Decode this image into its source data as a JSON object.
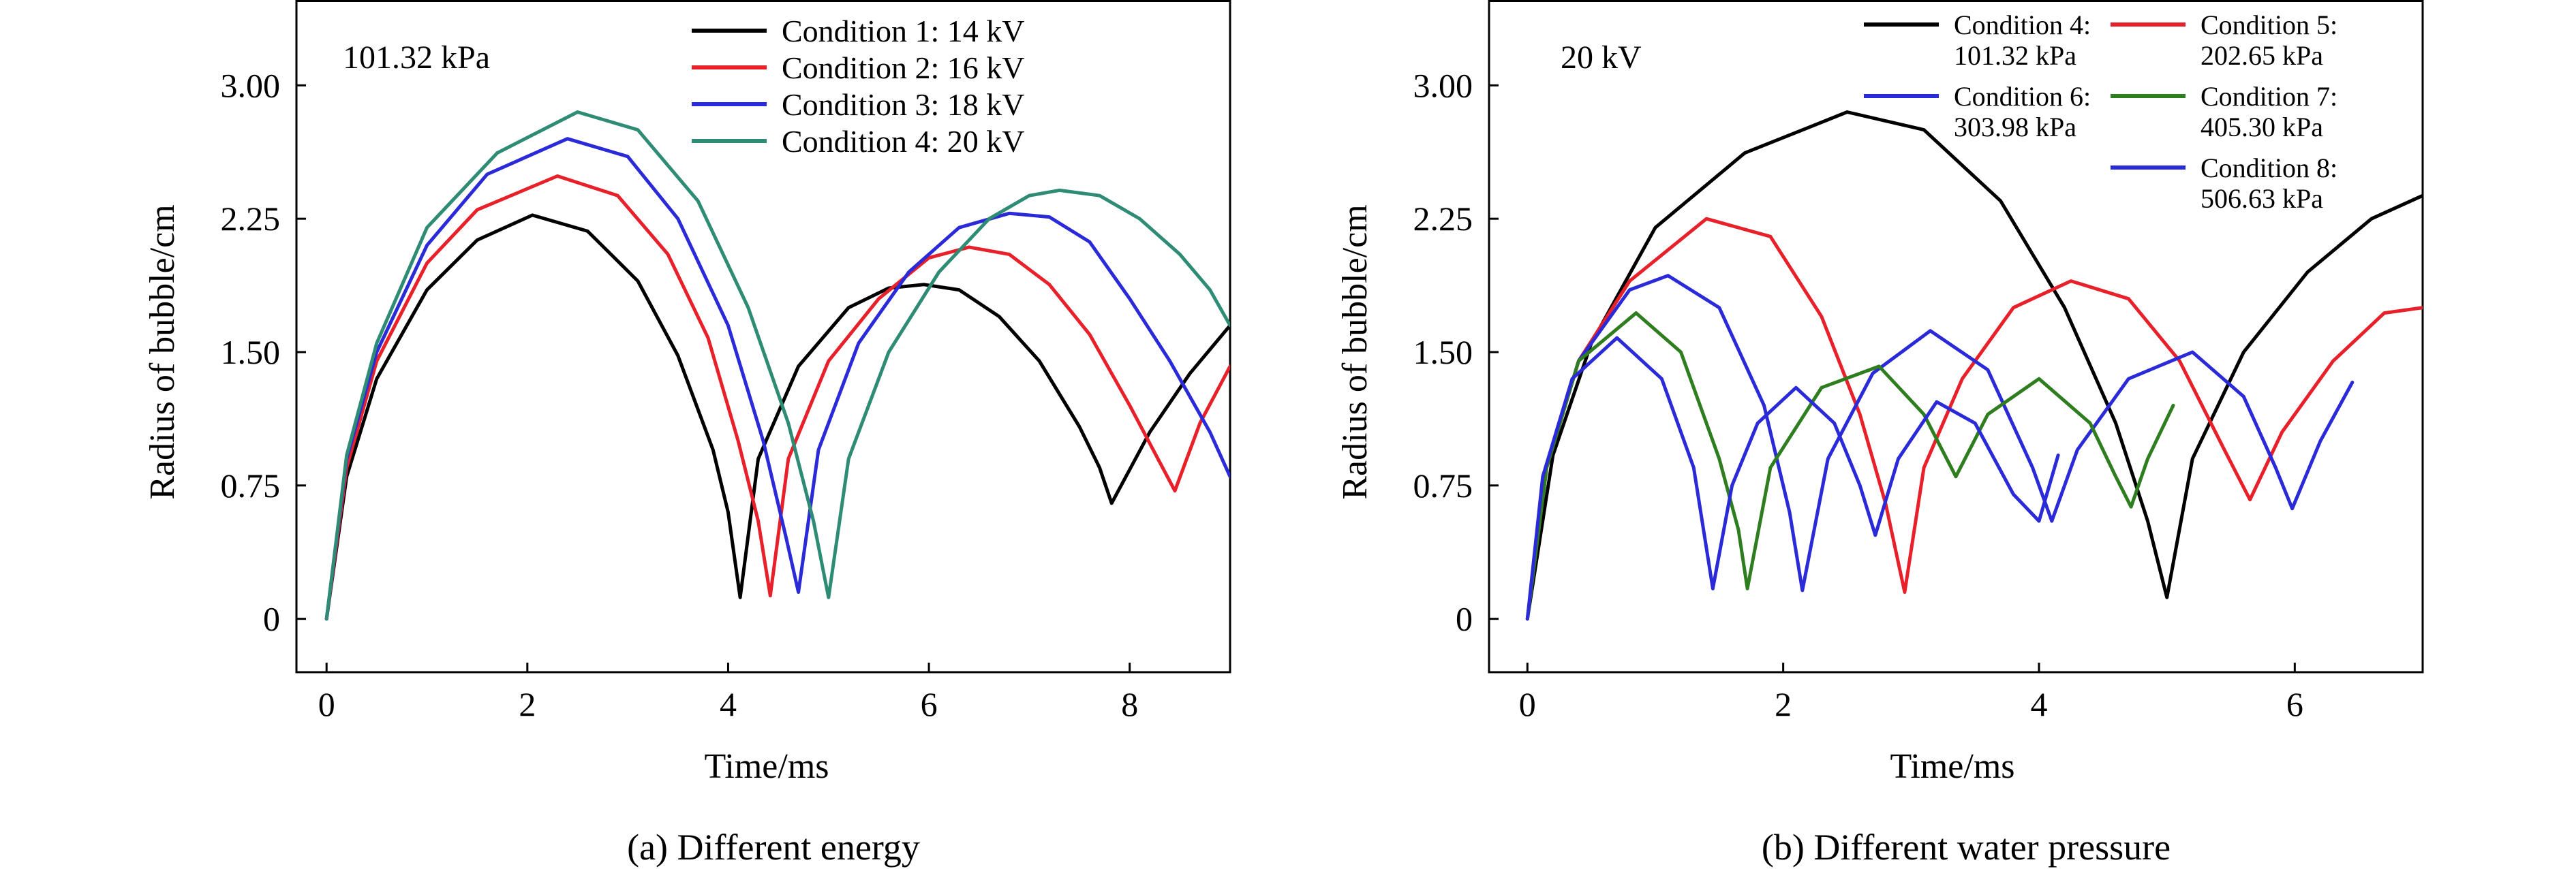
{
  "chart_data": [
    {
      "type": "line",
      "panel_tag": "101.32 kPa",
      "caption": "(a) Different energy",
      "xlabel": "Time/ms",
      "ylabel": "Radius of bubble/cm",
      "xlim": [
        -0.3,
        9.0
      ],
      "ylim": [
        -0.3,
        3.48
      ],
      "xticks": [
        0,
        2,
        4,
        6,
        8
      ],
      "xtick_labels": [
        "0",
        "2",
        "4",
        "6",
        "8"
      ],
      "yticks": [
        0,
        0.75,
        1.5,
        2.25,
        3.0
      ],
      "ytick_labels": [
        "0",
        "0.75",
        "1.50",
        "2.25",
        "3.00"
      ],
      "legend_position": "top-right",
      "series": [
        {
          "name": "Condition 1: 14 kV",
          "color": "#000000",
          "x": [
            0,
            0.2,
            0.5,
            1.0,
            1.5,
            2.05,
            2.6,
            3.1,
            3.5,
            3.85,
            4.0,
            4.12,
            4.3,
            4.7,
            5.2,
            5.6,
            5.95,
            6.3,
            6.7,
            7.1,
            7.5,
            7.7,
            7.82,
            8.2,
            8.6,
            9.0
          ],
          "y": [
            0,
            0.8,
            1.35,
            1.85,
            2.13,
            2.27,
            2.18,
            1.9,
            1.48,
            0.95,
            0.6,
            0.12,
            0.9,
            1.42,
            1.75,
            1.86,
            1.88,
            1.85,
            1.7,
            1.45,
            1.08,
            0.85,
            0.65,
            1.05,
            1.38,
            1.65
          ]
        },
        {
          "name": "Condition 2: 16 kV",
          "color": "#e8202a",
          "x": [
            0,
            0.2,
            0.5,
            1.0,
            1.5,
            2.3,
            2.9,
            3.4,
            3.8,
            4.1,
            4.3,
            4.42,
            4.6,
            5.0,
            5.5,
            6.0,
            6.4,
            6.8,
            7.2,
            7.6,
            8.0,
            8.3,
            8.45,
            8.7,
            9.0
          ],
          "y": [
            0,
            0.85,
            1.45,
            2.0,
            2.3,
            2.49,
            2.38,
            2.05,
            1.58,
            1.0,
            0.55,
            0.13,
            0.9,
            1.45,
            1.8,
            2.03,
            2.09,
            2.05,
            1.88,
            1.6,
            1.2,
            0.88,
            0.72,
            1.1,
            1.42
          ]
        },
        {
          "name": "Condition 3: 18 kV",
          "color": "#2a2ad8",
          "x": [
            0,
            0.2,
            0.5,
            1.0,
            1.6,
            2.4,
            3.0,
            3.5,
            4.0,
            4.35,
            4.58,
            4.7,
            4.9,
            5.3,
            5.8,
            6.3,
            6.8,
            7.2,
            7.6,
            8.0,
            8.4,
            8.8,
            9.0
          ],
          "y": [
            0,
            0.9,
            1.5,
            2.1,
            2.5,
            2.7,
            2.6,
            2.25,
            1.65,
            1.0,
            0.45,
            0.15,
            0.95,
            1.55,
            1.95,
            2.2,
            2.28,
            2.26,
            2.12,
            1.8,
            1.45,
            1.05,
            0.8
          ]
        },
        {
          "name": "Condition 4: 20 kV",
          "color": "#2e8b74",
          "x": [
            0,
            0.2,
            0.5,
            1.0,
            1.7,
            2.5,
            3.1,
            3.7,
            4.2,
            4.6,
            4.85,
            5.0,
            5.2,
            5.6,
            6.1,
            6.6,
            7.0,
            7.3,
            7.7,
            8.1,
            8.5,
            8.8,
            9.0
          ],
          "y": [
            0,
            0.92,
            1.55,
            2.2,
            2.62,
            2.85,
            2.75,
            2.35,
            1.75,
            1.1,
            0.55,
            0.12,
            0.9,
            1.5,
            1.95,
            2.25,
            2.38,
            2.41,
            2.38,
            2.25,
            2.05,
            1.85,
            1.65
          ]
        }
      ]
    },
    {
      "type": "line",
      "panel_tag": "20 kV",
      "caption": "(b) Different water pressure",
      "xlabel": "Time/ms",
      "ylabel": "Radius of bubble/cm",
      "xlim": [
        -0.3,
        7.0
      ],
      "ylim": [
        -0.3,
        3.48
      ],
      "xticks": [
        0,
        2,
        4,
        6
      ],
      "xtick_labels": [
        "0",
        "2",
        "4",
        "6"
      ],
      "yticks": [
        0,
        0.75,
        1.5,
        2.25,
        3.0
      ],
      "ytick_labels": [
        "0",
        "0.75",
        "1.50",
        "2.25",
        "3.00"
      ],
      "legend_position": "top-right",
      "series": [
        {
          "name": "Condition 4:\n101.32 kPa",
          "color": "#000000",
          "x": [
            0,
            0.2,
            0.5,
            1.0,
            1.7,
            2.5,
            3.1,
            3.7,
            4.2,
            4.6,
            4.85,
            5.0,
            5.2,
            5.6,
            6.1,
            6.6,
            7.0
          ],
          "y": [
            0,
            0.92,
            1.55,
            2.2,
            2.62,
            2.85,
            2.75,
            2.35,
            1.75,
            1.1,
            0.55,
            0.12,
            0.9,
            1.5,
            1.95,
            2.25,
            2.38
          ]
        },
        {
          "name": "Condition 5:\n202.65 kPa",
          "color": "#e8202a",
          "x": [
            0,
            0.15,
            0.4,
            0.8,
            1.4,
            1.9,
            2.3,
            2.6,
            2.8,
            2.95,
            3.1,
            3.4,
            3.8,
            4.25,
            4.7,
            5.1,
            5.45,
            5.65,
            5.9,
            6.3,
            6.7,
            7.0
          ],
          "y": [
            0,
            0.85,
            1.45,
            1.9,
            2.25,
            2.15,
            1.7,
            1.15,
            0.65,
            0.15,
            0.85,
            1.35,
            1.75,
            1.9,
            1.8,
            1.45,
            0.95,
            0.67,
            1.05,
            1.45,
            1.72,
            1.75
          ]
        },
        {
          "name": "Condition 6:\n303.98 kPa",
          "color": "#2a2ad8",
          "x": [
            0,
            0.15,
            0.4,
            0.8,
            1.1,
            1.5,
            1.85,
            2.05,
            2.15,
            2.35,
            2.7,
            3.15,
            3.6,
            3.95,
            4.1,
            4.3,
            4.7,
            5.2,
            5.6,
            5.85,
            5.98,
            6.2,
            6.45
          ],
          "y": [
            0,
            0.85,
            1.45,
            1.85,
            1.93,
            1.75,
            1.2,
            0.6,
            0.16,
            0.9,
            1.38,
            1.62,
            1.4,
            0.85,
            0.55,
            0.95,
            1.35,
            1.5,
            1.25,
            0.85,
            0.62,
            1.0,
            1.33
          ]
        },
        {
          "name": "Condition 7:\n405.30 kPa",
          "color": "#2e7d1e",
          "x": [
            0,
            0.15,
            0.4,
            0.85,
            1.2,
            1.5,
            1.65,
            1.72,
            1.9,
            2.3,
            2.75,
            3.1,
            3.35,
            3.6,
            4.0,
            4.4,
            4.6,
            4.72,
            4.85,
            5.05
          ],
          "y": [
            0,
            0.85,
            1.45,
            1.72,
            1.5,
            0.9,
            0.5,
            0.17,
            0.85,
            1.3,
            1.42,
            1.15,
            0.8,
            1.15,
            1.35,
            1.1,
            0.8,
            0.63,
            0.9,
            1.2
          ]
        },
        {
          "name": "Condition 8:\n506.63 kPa",
          "color": "#2a2ad8",
          "x": [
            0,
            0.12,
            0.35,
            0.7,
            1.05,
            1.3,
            1.45,
            1.6,
            1.8,
            2.1,
            2.4,
            2.6,
            2.72,
            2.9,
            3.2,
            3.5,
            3.8,
            4.0,
            4.15
          ],
          "y": [
            0,
            0.8,
            1.35,
            1.58,
            1.35,
            0.85,
            0.17,
            0.75,
            1.1,
            1.3,
            1.1,
            0.75,
            0.47,
            0.9,
            1.22,
            1.1,
            0.7,
            0.55,
            0.92
          ]
        }
      ]
    }
  ]
}
